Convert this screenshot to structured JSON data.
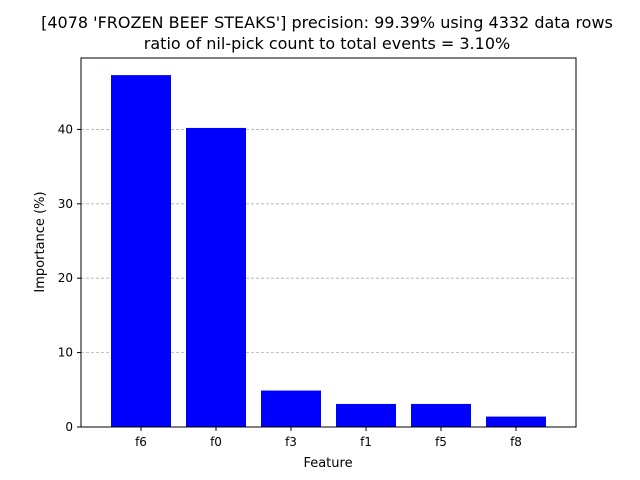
{
  "chart_data": {
    "type": "bar",
    "title_lines": [
      "[4078 'FROZEN BEEF STEAKS'] precision: 99.39% using 4332 data rows",
      "ratio of nil-pick count to total events = 3.10%"
    ],
    "xlabel": "Feature",
    "ylabel": "Importance (%)",
    "categories": [
      "f6",
      "f0",
      "f3",
      "f1",
      "f5",
      "f8"
    ],
    "values": [
      47.3,
      40.2,
      4.9,
      3.1,
      3.1,
      1.4
    ],
    "ylim": [
      0,
      49.6
    ],
    "yticks": [
      0,
      10,
      20,
      30,
      40
    ],
    "grid": "y-dashed",
    "bar_color": "#0000ff",
    "grid_color": "#b0b0b0"
  }
}
